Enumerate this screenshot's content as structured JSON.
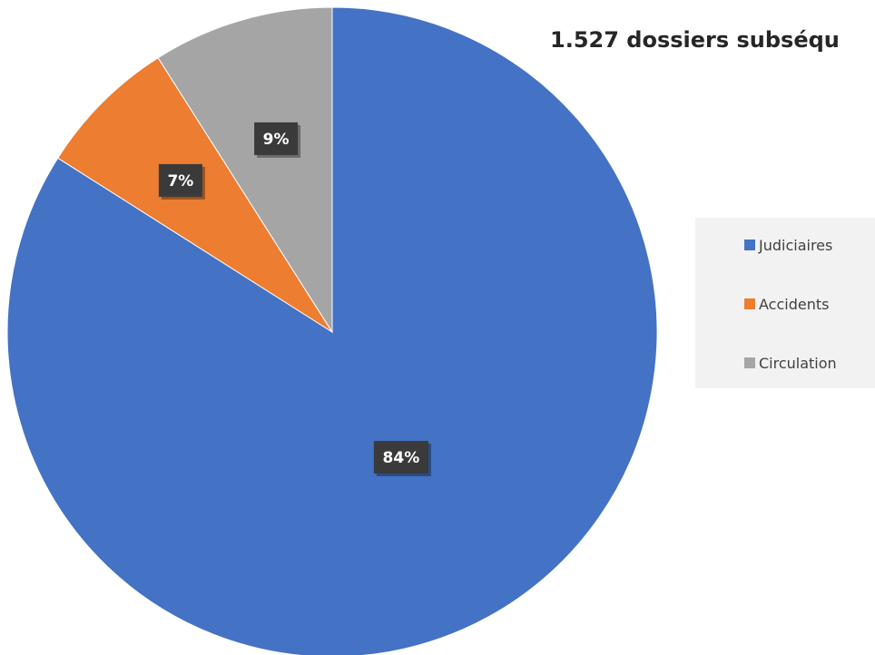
{
  "chart_data": {
    "type": "pie",
    "title": "1.527 dossiers subséqu",
    "categories": [
      "Judiciaires",
      "Accidents",
      "Circulation"
    ],
    "values": [
      84,
      7,
      9
    ],
    "labels": [
      "84%",
      "7%",
      "9%"
    ],
    "unit": "%",
    "legend": "right",
    "start_angle": "12 o'clock, clockwise",
    "colors": [
      "#4472c4",
      "#ed7d31",
      "#a5a5a5"
    ]
  }
}
